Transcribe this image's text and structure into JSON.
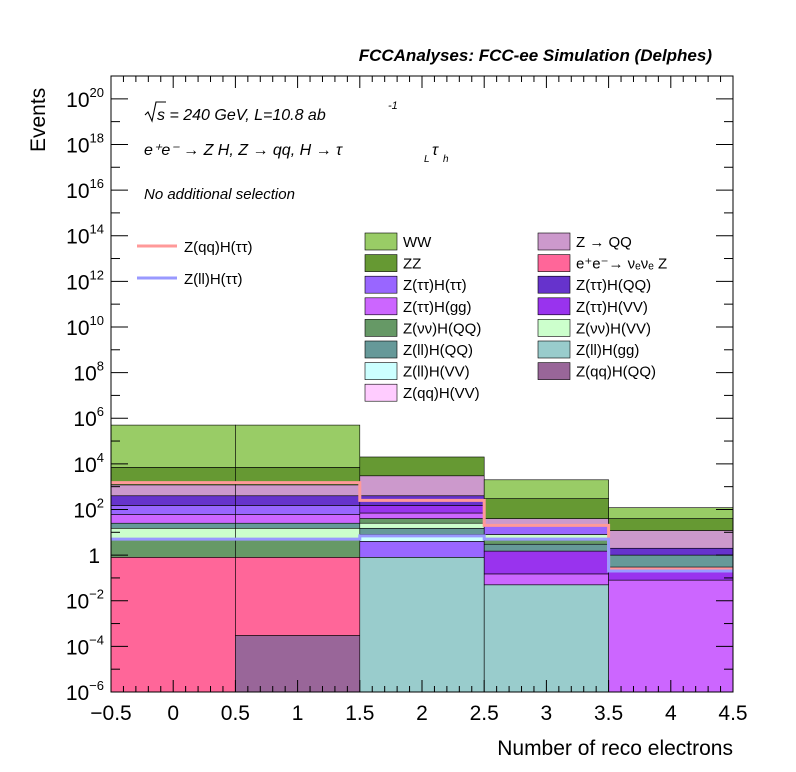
{
  "chart_data": {
    "type": "bar",
    "stacked": true,
    "header": "FCCAnalyses: FCC-ee Simulation (Delphes)",
    "xlabel": "Number of reco electrons",
    "ylabel": "Events",
    "xlim": [
      -0.5,
      4.5
    ],
    "ylim": [
      1e-06,
      1e+21
    ],
    "log_y": true,
    "grid": false,
    "x_ticks": [
      "−0.5",
      "0",
      "0.5",
      "1",
      "1.5",
      "2",
      "2.5",
      "3",
      "3.5",
      "4",
      "4.5"
    ],
    "x_tick_values": [
      -0.5,
      0,
      0.5,
      1,
      1.5,
      2,
      2.5,
      3,
      3.5,
      4,
      4.5
    ],
    "y_ticks": [
      {
        "base": "10",
        "exp": "−6",
        "value": 1e-06
      },
      {
        "base": "10",
        "exp": "−4",
        "value": 0.0001
      },
      {
        "base": "10",
        "exp": "−2",
        "value": 0.01
      },
      {
        "base": "1",
        "exp": "",
        "value": 1
      },
      {
        "base": "10",
        "exp": "2",
        "value": 100.0
      },
      {
        "base": "10",
        "exp": "4",
        "value": 10000.0
      },
      {
        "base": "10",
        "exp": "6",
        "value": 1000000.0
      },
      {
        "base": "10",
        "exp": "8",
        "value": 100000000.0
      },
      {
        "base": "10",
        "exp": "10",
        "value": 10000000000.0
      },
      {
        "base": "10",
        "exp": "12",
        "value": 1000000000000.0
      },
      {
        "base": "10",
        "exp": "14",
        "value": 100000000000000.0
      },
      {
        "base": "10",
        "exp": "16",
        "value": 1e+16
      },
      {
        "base": "10",
        "exp": "18",
        "value": 1e+18
      },
      {
        "base": "10",
        "exp": "20",
        "value": 1e+20
      }
    ],
    "bin_edges": [
      -0.5,
      0.5,
      1.5,
      2.5,
      3.5,
      4.5
    ],
    "annotations": {
      "energy": "s = 240 GeV, L=10.8 ab",
      "energy_exp": "-1",
      "process": "e⁺e⁻ → Z H, Z  → qq, H  → τ",
      "process_sub_l": "L",
      "process_tau": "τ",
      "process_sub_h": "h",
      "selection": "No additional selection"
    },
    "stack_tops": [
      {
        "name": "WW",
        "color": "#99cc66",
        "values": [
          500000.0,
          500000.0,
          20000.0,
          2000,
          120
        ]
      },
      {
        "name": "ZZ",
        "color": "#669933",
        "values": [
          7000,
          7000,
          3000,
          300,
          40
        ]
      },
      {
        "name": "Z → QQ",
        "color": "#cc99cc",
        "values": [
          2000,
          2000,
          400,
          40,
          12
        ]
      },
      {
        "name": "Z(ττ)H(QQ)",
        "color": "#6633cc",
        "values": [
          1200,
          1200,
          150,
          20,
          4
        ]
      },
      {
        "name": "Z(ττ)H(VV)",
        "color": "#9933ee",
        "values": [
          700,
          700,
          90,
          12,
          2.5
        ]
      },
      {
        "name": "Z(ττ)H(ττ)",
        "color": "#9966ff",
        "values": [
          350,
          350,
          60,
          8,
          1.8
        ]
      },
      {
        "name": "Z(ττ)H(gg)",
        "color": "#cc66ff",
        "values": [
          150,
          150,
          40,
          5,
          1.2
        ]
      },
      {
        "name": "Z(νν)H(QQ)",
        "color": "#669966",
        "values": [
          80,
          80,
          25,
          3.5,
          0.9
        ]
      },
      {
        "name": "Z(νν)H(VV)",
        "color": "#ccffcc",
        "values": [
          40,
          40,
          15,
          2.5,
          0.7
        ]
      },
      {
        "name": "Z(ll)H(QQ)",
        "color": "#669999",
        "values": [
          25,
          25,
          10,
          1.8,
          0.5
        ]
      },
      {
        "name": "Z(ll)H(VV)",
        "color": "#ccffff",
        "values": [
          15,
          15,
          7,
          1.3,
          0.4
        ]
      },
      {
        "name": "Z(qq)H(VV)",
        "color": "#ffccff",
        "values": [
          10,
          10,
          5,
          1.0,
          0.3
        ]
      },
      {
        "name": "Z(ll)H(gg)",
        "color": "#99cccc",
        "values": [
          0,
          0,
          0.8,
          0.05,
          0
        ]
      },
      {
        "name": "e⁺e⁻→ νₑνₑ Z",
        "color": "#ff6699",
        "values": [
          0.8,
          0.8,
          0,
          0,
          0
        ]
      },
      {
        "name": "Z(qq)H(QQ)",
        "color": "#996699",
        "values": [
          0,
          0.0003,
          0,
          0,
          0
        ]
      }
    ],
    "bin_segments": [
      [
        [
          "#ff6699",
          1e-06,
          0.8
        ],
        [
          "#669966",
          0.8,
          5
        ],
        [
          "#ccffcc",
          5,
          15
        ],
        [
          "#669999",
          15,
          25
        ],
        [
          "#cc66ff",
          25,
          60
        ],
        [
          "#9966ff",
          60,
          150
        ],
        [
          "#6633cc",
          150,
          400
        ],
        [
          "#cc99cc",
          400,
          1200
        ],
        [
          "#669933",
          1200,
          7000
        ],
        [
          "#99cc66",
          7000,
          500000.0
        ]
      ],
      [
        [
          "#996699",
          1e-06,
          0.0003
        ],
        [
          "#ff6699",
          0.0003,
          0.8
        ],
        [
          "#669966",
          0.8,
          5
        ],
        [
          "#ccffcc",
          5,
          15
        ],
        [
          "#669999",
          15,
          25
        ],
        [
          "#cc66ff",
          25,
          60
        ],
        [
          "#9966ff",
          60,
          150
        ],
        [
          "#6633cc",
          150,
          400
        ],
        [
          "#cc99cc",
          400,
          1200
        ],
        [
          "#669933",
          1200,
          7000
        ],
        [
          "#99cc66",
          7000,
          500000.0
        ]
      ],
      [
        [
          "#99cccc",
          1e-06,
          0.8
        ],
        [
          "#9966ff",
          0.8,
          4
        ],
        [
          "#ccffff",
          4,
          8
        ],
        [
          "#669999",
          8,
          15
        ],
        [
          "#ccffcc",
          15,
          25
        ],
        [
          "#669966",
          25,
          40
        ],
        [
          "#cc66ff",
          40,
          70
        ],
        [
          "#9933ee",
          70,
          150
        ],
        [
          "#6633cc",
          150,
          400
        ],
        [
          "#cc99cc",
          400,
          3000
        ],
        [
          "#669933",
          3000,
          20000
        ]
      ],
      [
        [
          "#99cccc",
          1e-06,
          0.05
        ],
        [
          "#cc66ff",
          0.05,
          0.15
        ],
        [
          "#9933ee",
          0.15,
          1.5
        ],
        [
          "#669999",
          1.5,
          3
        ],
        [
          "#669966",
          3,
          5
        ],
        [
          "#ccffcc",
          5,
          8
        ],
        [
          "#9966ff",
          8,
          20
        ],
        [
          "#cc99cc",
          20,
          40
        ],
        [
          "#669933",
          40,
          300
        ],
        [
          "#99cc66",
          300,
          2000
        ]
      ],
      [
        [
          "#cc66ff",
          1e-06,
          0.08
        ],
        [
          "#9933ee",
          0.08,
          0.3
        ],
        [
          "#669999",
          0.3,
          1.0
        ],
        [
          "#6633cc",
          1.0,
          2.0
        ],
        [
          "#cc99cc",
          2.0,
          12
        ],
        [
          "#669933",
          12,
          40
        ],
        [
          "#99cc66",
          40,
          120
        ]
      ]
    ],
    "series": [
      {
        "name": "Z(qq)H(ττ)",
        "type": "line",
        "color": "#ff9999",
        "values": [
          1500,
          1500,
          250,
          20,
          0.25
        ]
      },
      {
        "name": "Z(ll)H(ττ)",
        "type": "line",
        "color": "#9999ff",
        "values": [
          5,
          5,
          7,
          5,
          0.2
        ]
      }
    ],
    "legend_stack": [
      {
        "name": "WW",
        "color": "#99cc66"
      },
      {
        "name": "Z → QQ",
        "color": "#cc99cc"
      },
      {
        "name": "ZZ",
        "color": "#669933"
      },
      {
        "name": "e⁺e⁻→ νₑνₑ Z",
        "color": "#ff6699"
      },
      {
        "name": "Z(ττ)H(ττ)",
        "color": "#9966ff"
      },
      {
        "name": "Z(ττ)H(QQ)",
        "color": "#6633cc"
      },
      {
        "name": "Z(ττ)H(gg)",
        "color": "#cc66ff"
      },
      {
        "name": "Z(ττ)H(VV)",
        "color": "#9933ee"
      },
      {
        "name": "Z(νν)H(QQ)",
        "color": "#669966"
      },
      {
        "name": "Z(νν)H(VV)",
        "color": "#ccffcc"
      },
      {
        "name": "Z(ll)H(QQ)",
        "color": "#669999"
      },
      {
        "name": "Z(ll)H(gg)",
        "color": "#99cccc"
      },
      {
        "name": "Z(ll)H(VV)",
        "color": "#ccffff"
      },
      {
        "name": "Z(qq)H(QQ)",
        "color": "#996699"
      },
      {
        "name": "Z(qq)H(VV)",
        "color": "#ffccff"
      }
    ],
    "legend_lines": [
      {
        "name": "Z(qq)H(ττ)",
        "color": "#ff9999"
      },
      {
        "name": "Z(ll)H(ττ)",
        "color": "#9999ff"
      }
    ]
  }
}
